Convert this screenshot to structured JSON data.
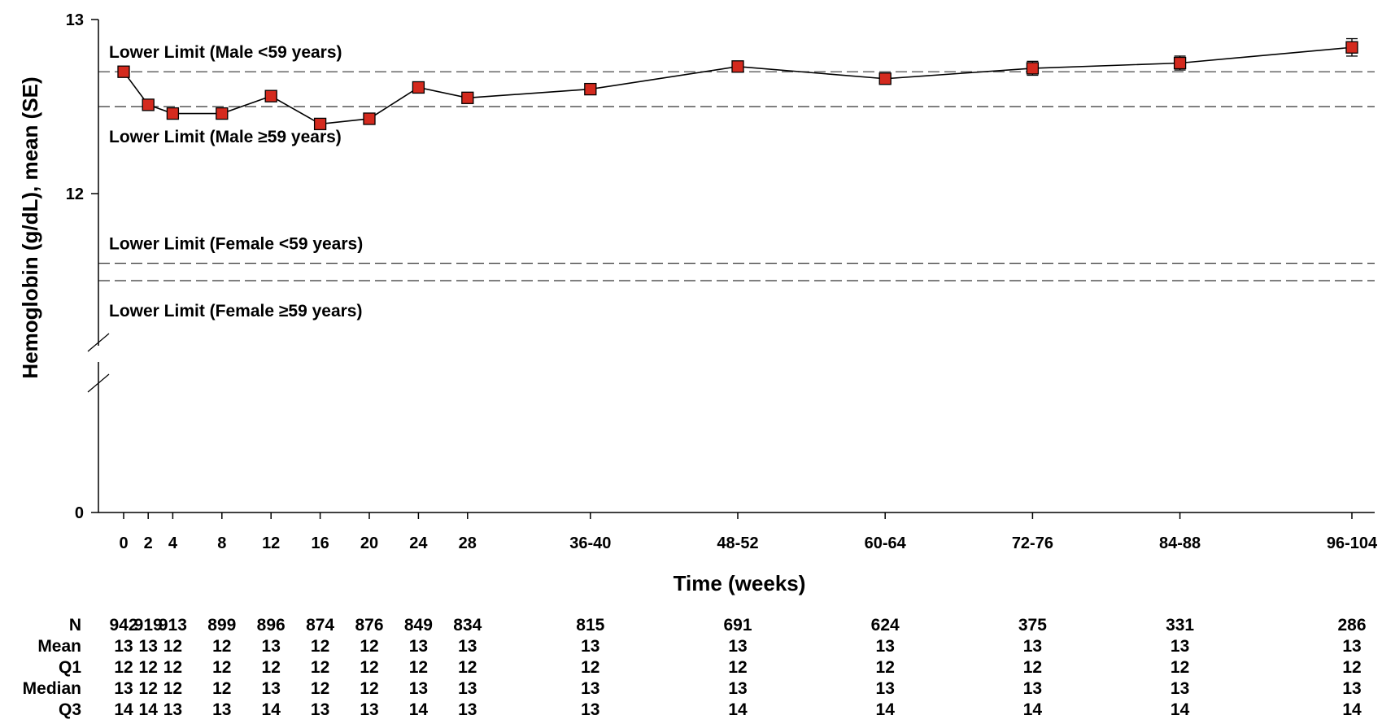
{
  "chart_data": {
    "type": "line",
    "title": "",
    "xlabel": "Time (weeks)",
    "ylabel": "Hemoglobin (g/dL), mean (SE)",
    "y_axis_break": true,
    "ylim": [
      0,
      13
    ],
    "y_ticks": [
      "0",
      "12",
      "13"
    ],
    "categories": [
      "0",
      "2",
      "4",
      "8",
      "12",
      "16",
      "20",
      "24",
      "28",
      "36-40",
      "48-52",
      "60-64",
      "72-76",
      "84-88",
      "96-104"
    ],
    "x_positions": [
      0,
      2,
      4,
      8,
      12,
      16,
      20,
      24,
      28,
      38,
      50,
      62,
      74,
      86,
      100
    ],
    "series": [
      {
        "values": [
          12.7,
          12.51,
          12.46,
          12.46,
          12.56,
          12.4,
          12.43,
          12.61,
          12.55,
          12.6,
          12.73,
          12.66,
          12.72,
          12.75,
          12.84
        ],
        "se": [
          0.03,
          0.03,
          0.03,
          0.03,
          0.03,
          0.03,
          0.03,
          0.03,
          0.03,
          0.03,
          0.03,
          0.03,
          0.04,
          0.04,
          0.05
        ],
        "color": "#d42a1e"
      }
    ],
    "reference_lines": [
      {
        "label": "Lower Limit (Male <59 years)",
        "value": 12.7,
        "label_pos": "above"
      },
      {
        "label": "Lower Limit (Male ≥59 years)",
        "value": 12.5,
        "label_pos": "below"
      },
      {
        "label": "Lower Limit (Female <59 years)",
        "value": 11.6,
        "label_pos": "above"
      },
      {
        "label": "Lower Limit (Female ≥59 years)",
        "value": 11.5,
        "label_pos": "below"
      }
    ],
    "table": {
      "rows": [
        {
          "label": "N",
          "values": [
            "942",
            "919",
            "913",
            "899",
            "896",
            "874",
            "876",
            "849",
            "834",
            "815",
            "691",
            "624",
            "375",
            "331",
            "286"
          ]
        },
        {
          "label": "Mean",
          "values": [
            "13",
            "13",
            "12",
            "12",
            "13",
            "12",
            "12",
            "13",
            "13",
            "13",
            "13",
            "13",
            "13",
            "13",
            "13"
          ]
        },
        {
          "label": "Q1",
          "values": [
            "12",
            "12",
            "12",
            "12",
            "12",
            "12",
            "12",
            "12",
            "12",
            "12",
            "12",
            "12",
            "12",
            "12",
            "12"
          ]
        },
        {
          "label": "Median",
          "values": [
            "13",
            "12",
            "12",
            "12",
            "13",
            "12",
            "12",
            "13",
            "13",
            "13",
            "13",
            "13",
            "13",
            "13",
            "13"
          ]
        },
        {
          "label": "Q3",
          "values": [
            "14",
            "14",
            "13",
            "13",
            "14",
            "13",
            "13",
            "14",
            "13",
            "13",
            "14",
            "14",
            "14",
            "14",
            "14"
          ]
        }
      ]
    }
  }
}
